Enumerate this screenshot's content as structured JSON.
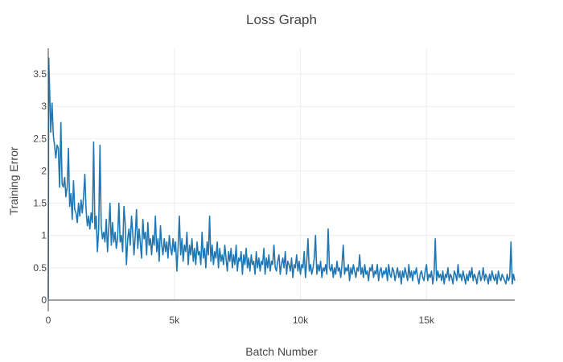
{
  "chart_data": {
    "type": "line",
    "title": "Loss Graph",
    "xlabel": "Batch Number",
    "ylabel": "Training Error",
    "xlim": [
      0,
      18500
    ],
    "ylim": [
      0,
      3.9
    ],
    "x_ticks": [
      0,
      5000,
      10000,
      15000
    ],
    "x_tick_labels": [
      "0",
      "5k",
      "10k",
      "15k"
    ],
    "y_ticks": [
      0,
      0.5,
      1,
      1.5,
      2,
      2.5,
      3,
      3.5
    ],
    "y_tick_labels": [
      "0",
      "0.5",
      "1",
      "1.5",
      "2",
      "2.5",
      "3",
      "3.5"
    ],
    "grid": true,
    "line_color": "#1f77b4",
    "series": [
      {
        "x": [
          0,
          20,
          50,
          100,
          150,
          200,
          250,
          300,
          350,
          400,
          450,
          500,
          550,
          600,
          650,
          700,
          750,
          800,
          850,
          900,
          950,
          1000,
          1050,
          1100,
          1150,
          1200,
          1250,
          1300,
          1350,
          1400,
          1450,
          1500,
          1550,
          1600,
          1650,
          1700,
          1750,
          1800,
          1850,
          1900,
          1950,
          2000,
          2050,
          2100,
          2150,
          2200,
          2250,
          2300,
          2350,
          2400,
          2450,
          2500,
          2550,
          2600,
          2650,
          2700,
          2750,
          2800,
          2850,
          2900,
          2950,
          3000,
          3050,
          3100,
          3150,
          3200,
          3250,
          3300,
          3350,
          3400,
          3450,
          3500,
          3550,
          3600,
          3650,
          3700,
          3750,
          3800,
          3850,
          3900,
          3950,
          4000,
          4050,
          4100,
          4150,
          4200,
          4250,
          4300,
          4350,
          4400,
          4450,
          4500,
          4550,
          4600,
          4650,
          4700,
          4750,
          4800,
          4850,
          4900,
          4950,
          5000,
          5050,
          5100,
          5150,
          5200,
          5250,
          5300,
          5350,
          5400,
          5450,
          5500,
          5550,
          5600,
          5650,
          5700,
          5750,
          5800,
          5850,
          5900,
          5950,
          6000,
          6050,
          6100,
          6150,
          6200,
          6250,
          6300,
          6350,
          6400,
          6450,
          6500,
          6550,
          6600,
          6650,
          6700,
          6750,
          6800,
          6850,
          6900,
          6950,
          7000,
          7050,
          7100,
          7150,
          7200,
          7250,
          7300,
          7350,
          7400,
          7450,
          7500,
          7550,
          7600,
          7650,
          7700,
          7750,
          7800,
          7850,
          7900,
          7950,
          8000,
          8050,
          8100,
          8150,
          8200,
          8250,
          8300,
          8350,
          8400,
          8450,
          8500,
          8550,
          8600,
          8650,
          8700,
          8750,
          8800,
          8850,
          8900,
          8950,
          9000,
          9050,
          9100,
          9150,
          9200,
          9250,
          9300,
          9350,
          9400,
          9450,
          9500,
          9550,
          9600,
          9650,
          9700,
          9750,
          9800,
          9850,
          9900,
          9950,
          10000,
          10050,
          10100,
          10150,
          10200,
          10250,
          10300,
          10350,
          10400,
          10450,
          10500,
          10550,
          10600,
          10650,
          10700,
          10750,
          10800,
          10850,
          10900,
          10950,
          11000,
          11050,
          11100,
          11150,
          11200,
          11250,
          11300,
          11350,
          11400,
          11450,
          11500,
          11550,
          11600,
          11650,
          11700,
          11750,
          11800,
          11850,
          11900,
          11950,
          12000,
          12050,
          12100,
          12150,
          12200,
          12250,
          12300,
          12350,
          12400,
          12450,
          12500,
          12550,
          12600,
          12650,
          12700,
          12750,
          12800,
          12850,
          12900,
          12950,
          13000,
          13050,
          13100,
          13150,
          13200,
          13250,
          13300,
          13350,
          13400,
          13450,
          13500,
          13550,
          13600,
          13650,
          13700,
          13750,
          13800,
          13850,
          13900,
          13950,
          14000,
          14050,
          14100,
          14150,
          14200,
          14250,
          14300,
          14350,
          14400,
          14450,
          14500,
          14550,
          14600,
          14650,
          14700,
          14750,
          14800,
          14850,
          14900,
          14950,
          15000,
          15050,
          15100,
          15150,
          15200,
          15250,
          15300,
          15350,
          15400,
          15450,
          15500,
          15550,
          15600,
          15650,
          15700,
          15750,
          15800,
          15850,
          15900,
          15950,
          16000,
          16050,
          16100,
          16150,
          16200,
          16250,
          16300,
          16350,
          16400,
          16450,
          16500,
          16550,
          16600,
          16650,
          16700,
          16750,
          16800,
          16850,
          16900,
          16950,
          17000,
          17050,
          17100,
          17150,
          17200,
          17250,
          17300,
          17350,
          17400,
          17450,
          17500,
          17550,
          17600,
          17650,
          17700,
          17750,
          17800,
          17850,
          17900,
          17950,
          18000,
          18050,
          18100,
          18150,
          18200,
          18250,
          18300,
          18350,
          18400,
          18450,
          18500
        ],
        "y": [
          0.02,
          3.75,
          3.3,
          2.6,
          3.05,
          2.55,
          2.4,
          2.2,
          2.4,
          2.35,
          1.75,
          2.75,
          1.8,
          1.75,
          1.9,
          1.6,
          1.75,
          2.35,
          1.45,
          1.65,
          1.25,
          1.85,
          1.4,
          1.35,
          1.2,
          1.5,
          1.3,
          1.55,
          1.35,
          1.6,
          1.95,
          1.4,
          1.15,
          1.3,
          1.1,
          1.35,
          1.2,
          2.45,
          1.1,
          1.3,
          0.75,
          1.1,
          2.4,
          1.15,
          0.95,
          1.05,
          0.9,
          1.25,
          0.75,
          1.1,
          1.5,
          0.85,
          1.2,
          0.9,
          1.05,
          0.8,
          0.95,
          1.5,
          0.9,
          1.0,
          0.75,
          1.45,
          1.2,
          0.55,
          0.95,
          1.1,
          0.85,
          1.3,
          1.05,
          0.7,
          1.0,
          1.4,
          0.8,
          1.1,
          0.9,
          0.65,
          1.25,
          0.95,
          1.05,
          0.7,
          1.2,
          0.85,
          0.95,
          0.7,
          1.0,
          0.85,
          1.3,
          0.75,
          0.95,
          0.6,
          1.15,
          0.85,
          0.7,
          0.95,
          0.75,
          0.9,
          0.65,
          1.0,
          0.8,
          0.7,
          0.95,
          0.75,
          0.9,
          0.45,
          0.85,
          1.3,
          0.7,
          0.95,
          0.6,
          0.85,
          0.75,
          1.05,
          0.55,
          0.85,
          0.7,
          0.95,
          0.6,
          0.8,
          0.55,
          0.9,
          0.7,
          0.75,
          0.55,
          1.05,
          0.65,
          0.8,
          0.5,
          0.9,
          0.7,
          1.3,
          0.6,
          0.85,
          0.55,
          0.75,
          0.65,
          0.9,
          0.5,
          0.8,
          0.6,
          0.7,
          0.55,
          0.85,
          0.65,
          0.45,
          0.75,
          0.6,
          0.8,
          0.5,
          0.7,
          0.55,
          0.85,
          0.45,
          0.65,
          0.6,
          0.75,
          0.4,
          0.7,
          0.55,
          0.8,
          0.5,
          0.65,
          0.45,
          0.7,
          0.55,
          0.6,
          0.4,
          0.75,
          0.5,
          0.65,
          0.45,
          0.6,
          0.55,
          0.8,
          0.4,
          0.65,
          0.5,
          0.7,
          0.45,
          0.6,
          0.55,
          0.85,
          0.5,
          0.45,
          0.6,
          0.7,
          0.4,
          0.55,
          0.65,
          0.5,
          0.75,
          0.4,
          0.6,
          0.55,
          0.45,
          0.65,
          0.35,
          0.55,
          0.5,
          0.7,
          0.45,
          0.6,
          0.4,
          0.55,
          0.5,
          0.75,
          0.35,
          0.6,
          0.95,
          0.45,
          0.55,
          0.4,
          0.5,
          0.65,
          1.0,
          0.4,
          0.55,
          0.45,
          0.6,
          0.35,
          0.5,
          0.45,
          0.55,
          0.4,
          1.1,
          0.5,
          0.45,
          0.55,
          0.35,
          0.5,
          0.4,
          0.6,
          0.45,
          0.5,
          0.35,
          0.55,
          0.85,
          0.4,
          0.5,
          0.45,
          0.55,
          0.3,
          0.5,
          0.4,
          0.55,
          0.45,
          0.35,
          0.5,
          0.45,
          0.7,
          0.4,
          0.5,
          0.35,
          0.55,
          0.4,
          0.45,
          0.3,
          0.5,
          0.45,
          0.55,
          0.35,
          0.45,
          0.4,
          0.55,
          0.3,
          0.45,
          0.5,
          0.35,
          0.45,
          0.4,
          0.5,
          0.3,
          0.55,
          0.4,
          0.35,
          0.5,
          0.45,
          0.3,
          0.4,
          0.5,
          0.35,
          0.45,
          0.25,
          0.45,
          0.35,
          0.5,
          0.4,
          0.3,
          0.55,
          0.35,
          0.45,
          0.3,
          0.45,
          0.4,
          0.5,
          0.35,
          0.25,
          0.4,
          0.45,
          0.35,
          0.3,
          0.45,
          0.55,
          0.3,
          0.4,
          0.35,
          0.45,
          0.25,
          0.4,
          0.95,
          0.3,
          0.45,
          0.35,
          0.4,
          0.3,
          0.45,
          0.25,
          0.4,
          0.35,
          0.5,
          0.3,
          0.4,
          0.35,
          0.25,
          0.45,
          0.4,
          0.3,
          0.55,
          0.35,
          0.4,
          0.3,
          0.45,
          0.35,
          0.25,
          0.4,
          0.3,
          0.45,
          0.35,
          0.5,
          0.3,
          0.4,
          0.35,
          0.25,
          0.4,
          0.45,
          0.3,
          0.35,
          0.5,
          0.3,
          0.4,
          0.35,
          0.25,
          0.4,
          0.3,
          0.45,
          0.35,
          0.3,
          0.4,
          0.25,
          0.45,
          0.35,
          0.3,
          0.4,
          0.35,
          0.3,
          0.25,
          0.4,
          0.3,
          0.35,
          0.9,
          0.25,
          0.4,
          0.3
        ]
      }
    ]
  }
}
